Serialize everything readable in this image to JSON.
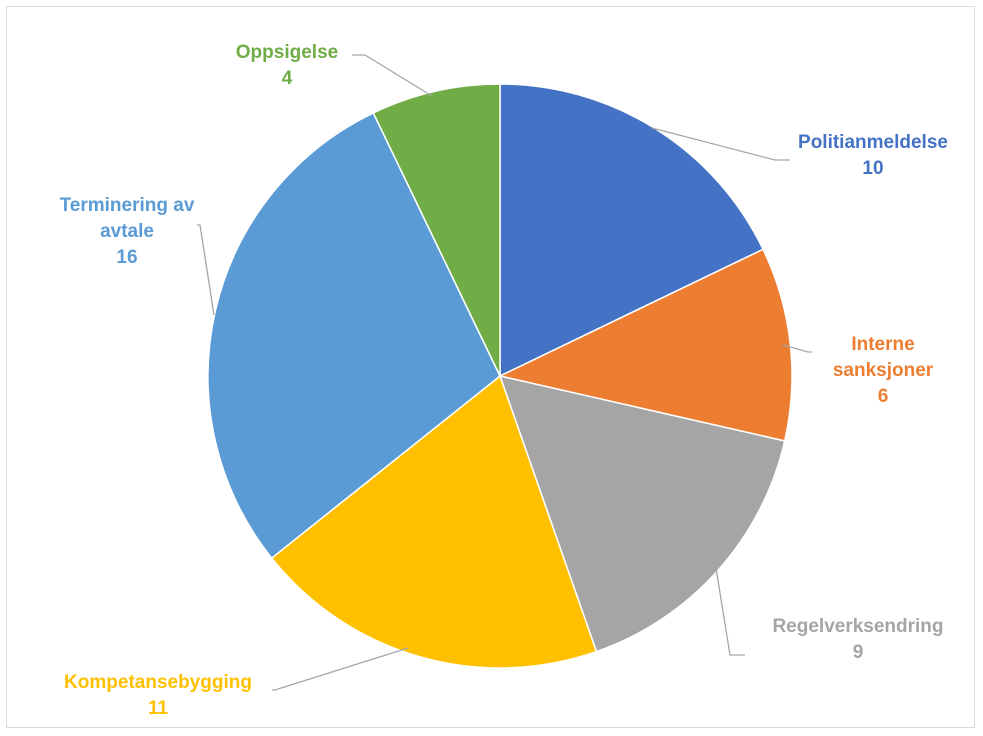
{
  "chart_data": {
    "type": "pie",
    "title": "",
    "legend": "none",
    "slices": [
      {
        "name_lines": [
          "Politianmeldelse"
        ],
        "value": 10,
        "value_label": "10",
        "color": "#4472C4"
      },
      {
        "name_lines": [
          "Interne",
          "sanksjoner"
        ],
        "value": 6,
        "value_label": "6",
        "color": "#ED7D31"
      },
      {
        "name_lines": [
          "Regelverksendring"
        ],
        "value": 9,
        "value_label": "9",
        "color": "#A5A5A5"
      },
      {
        "name_lines": [
          "Kompetansebygging"
        ],
        "value": 11,
        "value_label": "11",
        "color": "#FFC000"
      },
      {
        "name_lines": [
          "Terminering av",
          "avtale"
        ],
        "value": 16,
        "value_label": "16",
        "color": "#5B9BD5"
      },
      {
        "name_lines": [
          "Oppsigelse"
        ],
        "value": 4,
        "value_label": "4",
        "color": "#70AD47"
      }
    ],
    "leader_line_color": "#A6A6A6"
  }
}
